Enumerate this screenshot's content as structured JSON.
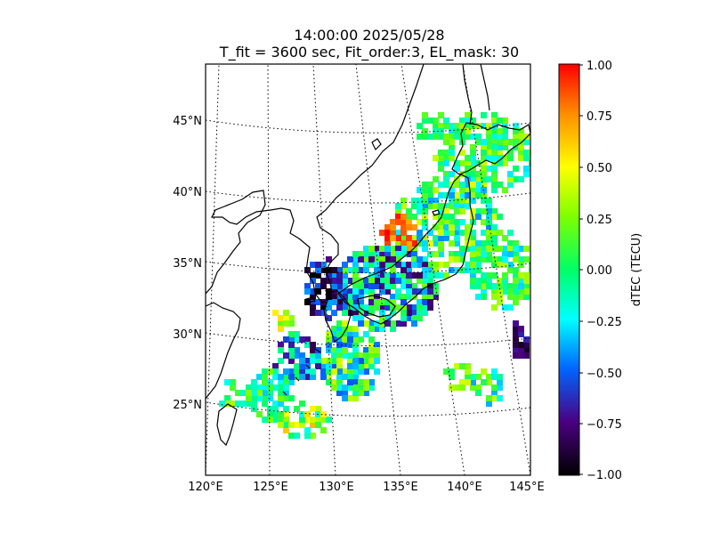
{
  "title": {
    "line1": "14:00:00 2025/05/28",
    "line2": "T_fit = 3600 sec, Fit_order:3, EL_mask: 30"
  },
  "map": {
    "region": "Japan and surrounding area",
    "lon_labels": [
      "120°E",
      "125°E",
      "130°E",
      "135°E",
      "140°E",
      "145°E"
    ],
    "lat_labels": [
      "25°N",
      "30°N",
      "35°N",
      "40°N",
      "45°N"
    ],
    "graticule_style": "dotted",
    "data_style": "colored pixels of dTEC values over GNSS ionospheric pierce points"
  },
  "colorbar": {
    "label": "dTEC (TECU)",
    "ticks": [
      "1.00",
      "0.75",
      "0.50",
      "0.25",
      "0.00",
      "−0.25",
      "−0.50",
      "−0.75",
      "−1.00"
    ],
    "range": [
      -1.0,
      1.0
    ],
    "colormap_stops": [
      "#ff0000",
      "#ff8c00",
      "#ffff00",
      "#7fff00",
      "#00ff66",
      "#00ffff",
      "#0066ff",
      "#4b0082",
      "#000000"
    ]
  }
}
